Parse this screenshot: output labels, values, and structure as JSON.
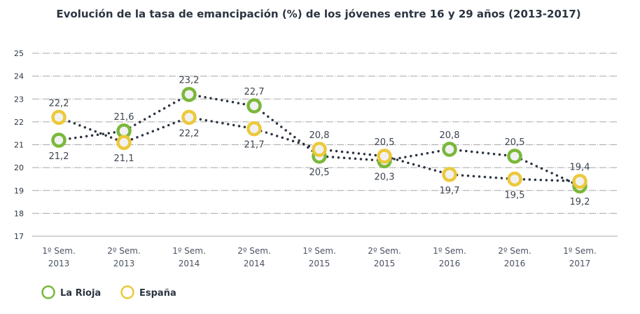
{
  "chart_data": {
    "type": "line",
    "title": "Evolución de la tasa de emancipación (%) de los jóvenes entre 16 y 29 años (2013-2017)",
    "xlabel": "",
    "ylabel": "",
    "categories": [
      [
        "1º Sem.",
        "2013"
      ],
      [
        "2º Sem.",
        "2013"
      ],
      [
        "1º Sem.",
        "2014"
      ],
      [
        "2º Sem.",
        "2014"
      ],
      [
        "1º Sem.",
        "2015"
      ],
      [
        "2º Sem.",
        "2015"
      ],
      [
        "1º Sem.",
        "2016"
      ],
      [
        "2º Sem.",
        "2016"
      ],
      [
        "1º Sem.",
        "2017"
      ]
    ],
    "ylim": [
      17,
      25
    ],
    "yticks": [
      17,
      18,
      19,
      20,
      21,
      22,
      23,
      24,
      25
    ],
    "grid": true,
    "legend_position": "bottom-left",
    "series": [
      {
        "name": "La Rioja",
        "color": "#7ab83a",
        "values": [
          21.2,
          21.6,
          23.2,
          22.7,
          20.5,
          20.3,
          20.8,
          20.5,
          19.2
        ]
      },
      {
        "name": "España",
        "color": "#ecc93a",
        "values": [
          22.2,
          21.1,
          22.2,
          21.7,
          20.8,
          20.5,
          19.7,
          19.5,
          19.4
        ]
      }
    ],
    "line_color": "#2b3440",
    "line_style": "dotted"
  }
}
